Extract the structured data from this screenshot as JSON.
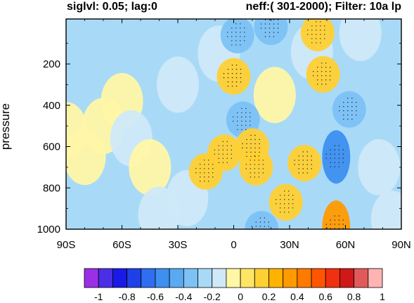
{
  "header": {
    "left": "siglvl: 0.05; lag:0",
    "right": "neff:( 301-2000); Filter: 10a lp"
  },
  "chart_data": {
    "type": "heatmap",
    "title": "",
    "xlabel": "",
    "ylabel": "pressure",
    "x_ticks": [
      "90S",
      "60S",
      "30S",
      "0",
      "30N",
      "60N",
      "90N"
    ],
    "x_tick_values": [
      -90,
      -60,
      -30,
      0,
      30,
      60,
      90
    ],
    "xlim": [
      -90,
      90
    ],
    "y_ticks": [
      "200",
      "400",
      "600",
      "800",
      "1000"
    ],
    "y_tick_values": [
      200,
      400,
      600,
      800,
      1000
    ],
    "ylim": [
      1000,
      10
    ],
    "y_scale": "pressure (surface at bottom)",
    "colorbar": {
      "tick_labels": [
        "-1",
        "-0.8",
        "-0.6",
        "-0.4",
        "-0.2",
        "0",
        "0.2",
        "0.4",
        "0.6",
        "0.8",
        "1"
      ],
      "levels": [
        -1,
        -0.8,
        -0.6,
        -0.4,
        -0.2,
        0,
        0.2,
        0.4,
        0.6,
        0.8,
        1
      ],
      "colors": [
        "#9b2fe6",
        "#4b2fe6",
        "#1a1ae6",
        "#1f40e6",
        "#2f6ef0",
        "#3d8ff0",
        "#5aaaf3",
        "#7cc2f5",
        "#a8daf7",
        "#cfe9f8",
        "#fff7a6",
        "#ffe566",
        "#ffd033",
        "#ffb300",
        "#ff9a00",
        "#ff7a00",
        "#ff5500",
        "#f03010",
        "#d01818",
        "#e05a5a",
        "#ffb3b3"
      ]
    },
    "significance_stippling": true,
    "blobs": [
      {
        "lat": -90,
        "p": 520,
        "v": 0.1
      },
      {
        "lat": -80,
        "p": 650,
        "v": 0.1
      },
      {
        "lat": -70,
        "p": 500,
        "v": 0.1
      },
      {
        "lat": -60,
        "p": 380,
        "v": 0.1
      },
      {
        "lat": -55,
        "p": 560,
        "v": -0.1
      },
      {
        "lat": -45,
        "p": 700,
        "v": 0.1
      },
      {
        "lat": -40,
        "p": 930,
        "v": -0.1
      },
      {
        "lat": -30,
        "p": 300,
        "v": -0.1
      },
      {
        "lat": -25,
        "p": 850,
        "v": -0.1
      },
      {
        "lat": -15,
        "p": 720,
        "v": 0.3
      },
      {
        "lat": -5,
        "p": 630,
        "v": 0.3
      },
      {
        "lat": -8,
        "p": 150,
        "v": -0.1
      },
      {
        "lat": 0,
        "p": 260,
        "v": 0.3
      },
      {
        "lat": 5,
        "p": 470,
        "v": -0.3
      },
      {
        "lat": 2,
        "p": 60,
        "v": -0.3
      },
      {
        "lat": 10,
        "p": 600,
        "v": 0.3
      },
      {
        "lat": 12,
        "p": 700,
        "v": 0.3
      },
      {
        "lat": 15,
        "p": 1000,
        "v": -0.3
      },
      {
        "lat": 20,
        "p": 20,
        "v": -0.3
      },
      {
        "lat": 22,
        "p": 350,
        "v": 0.1
      },
      {
        "lat": 28,
        "p": 870,
        "v": 0.3
      },
      {
        "lat": 38,
        "p": 680,
        "v": 0.3
      },
      {
        "lat": 42,
        "p": 140,
        "v": -0.1
      },
      {
        "lat": 45,
        "p": 50,
        "v": 0.3
      },
      {
        "lat": 48,
        "p": 250,
        "v": 0.3
      },
      {
        "lat": 55,
        "p": 650,
        "v": -0.5
      },
      {
        "lat": 55,
        "p": 990,
        "v": 0.5
      },
      {
        "lat": 62,
        "p": 420,
        "v": -0.3
      },
      {
        "lat": 68,
        "p": 50,
        "v": -0.1
      },
      {
        "lat": 78,
        "p": 700,
        "v": -0.1
      },
      {
        "lat": 85,
        "p": 950,
        "v": -0.1
      }
    ]
  }
}
